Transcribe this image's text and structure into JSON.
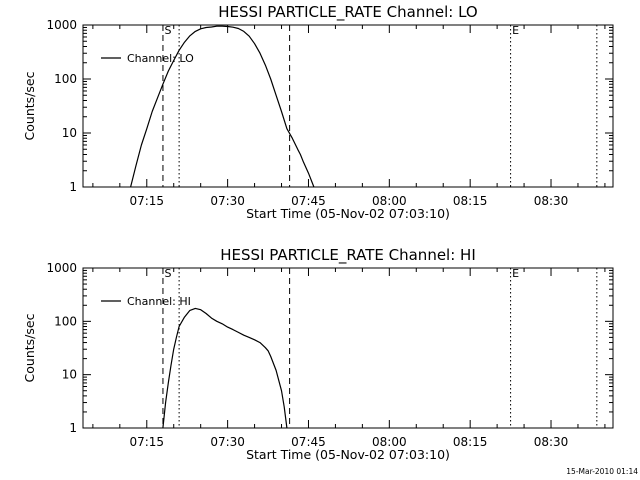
{
  "chart_data": [
    {
      "type": "line",
      "title": "HESSI PARTICLE_RATE Channel: LO",
      "xlabel": "Start Time (05-Nov-02 07:03:10)",
      "ylabel": "Counts/sec",
      "xlim": [
        "07:03:10",
        "08:41:30"
      ],
      "ylim": [
        1,
        1000
      ],
      "y_scale": "log",
      "x_ticks": [
        "07:15",
        "07:30",
        "07:45",
        "08:00",
        "08:15",
        "08:30"
      ],
      "y_ticks": [
        "1",
        "10",
        "100",
        "1000"
      ],
      "legend": {
        "position": "top-left",
        "entries": [
          "Channel: LO"
        ]
      },
      "grid": false,
      "series": [
        {
          "name": "Channel: LO",
          "x": [
            "07:12:00",
            "07:13:00",
            "07:14:00",
            "07:15:00",
            "07:16:00",
            "07:17:00",
            "07:18:00",
            "07:19:00",
            "07:20:00",
            "07:21:00",
            "07:22:00",
            "07:23:00",
            "07:24:00",
            "07:25:00",
            "07:26:00",
            "07:27:00",
            "07:28:00",
            "07:29:00",
            "07:30:00",
            "07:31:00",
            "07:32:00",
            "07:33:00",
            "07:34:00",
            "07:35:00",
            "07:36:00",
            "07:37:00",
            "07:38:00",
            "07:39:00",
            "07:40:00",
            "07:41:00",
            "07:42:00",
            "07:43:00",
            "07:43:30",
            "07:44:00",
            "07:45:00",
            "07:46:00"
          ],
          "values": [
            1,
            2.5,
            6,
            12,
            25,
            45,
            80,
            140,
            220,
            340,
            480,
            630,
            760,
            850,
            900,
            920,
            950,
            950,
            940,
            910,
            860,
            760,
            620,
            450,
            300,
            180,
            100,
            50,
            25,
            12,
            8,
            5,
            4,
            3,
            1.8,
            1
          ]
        }
      ],
      "vertical_markers": [
        {
          "time": "07:18:00",
          "style": "dashed",
          "label": "S"
        },
        {
          "time": "07:21:00",
          "style": "dotted",
          "label": ""
        },
        {
          "time": "07:41:30",
          "style": "dashed",
          "label": ""
        },
        {
          "time": "08:22:30",
          "style": "dotted",
          "label": "E"
        },
        {
          "time": "08:38:30",
          "style": "dotted",
          "label": ""
        }
      ]
    },
    {
      "type": "line",
      "title": "HESSI PARTICLE_RATE Channel: HI",
      "xlabel": "Start Time (05-Nov-02 07:03:10)",
      "ylabel": "Counts/sec",
      "xlim": [
        "07:03:10",
        "08:41:30"
      ],
      "ylim": [
        1,
        1000
      ],
      "y_scale": "log",
      "x_ticks": [
        "07:15",
        "07:30",
        "07:45",
        "08:00",
        "08:15",
        "08:30"
      ],
      "y_ticks": [
        "1",
        "10",
        "100",
        "1000"
      ],
      "legend": {
        "position": "top-left",
        "entries": [
          "Channel: HI"
        ]
      },
      "grid": false,
      "series": [
        {
          "name": "Channel: HI",
          "x": [
            "07:18:00",
            "07:18:30",
            "07:19:00",
            "07:19:30",
            "07:20:00",
            "07:20:30",
            "07:21:00",
            "07:22:00",
            "07:23:00",
            "07:24:00",
            "07:25:00",
            "07:26:00",
            "07:27:00",
            "07:28:00",
            "07:29:00",
            "07:30:00",
            "07:31:00",
            "07:32:00",
            "07:33:00",
            "07:34:00",
            "07:35:00",
            "07:36:00",
            "07:37:00",
            "07:37:30",
            "07:38:00",
            "07:39:00",
            "07:40:00",
            "07:40:30",
            "07:41:00"
          ],
          "values": [
            1,
            3,
            7,
            15,
            30,
            50,
            80,
            120,
            160,
            175,
            165,
            140,
            115,
            100,
            90,
            78,
            70,
            62,
            55,
            50,
            45,
            40,
            32,
            28,
            22,
            12,
            5,
            2.5,
            1
          ]
        }
      ],
      "vertical_markers": [
        {
          "time": "07:18:00",
          "style": "dashed",
          "label": "S"
        },
        {
          "time": "07:21:00",
          "style": "dotted",
          "label": ""
        },
        {
          "time": "07:41:30",
          "style": "dashed",
          "label": ""
        },
        {
          "time": "08:22:30",
          "style": "dotted",
          "label": "E"
        },
        {
          "time": "08:38:30",
          "style": "dotted",
          "label": ""
        }
      ]
    }
  ],
  "footer": {
    "timestamp": "15-Mar-2010 01:14"
  }
}
